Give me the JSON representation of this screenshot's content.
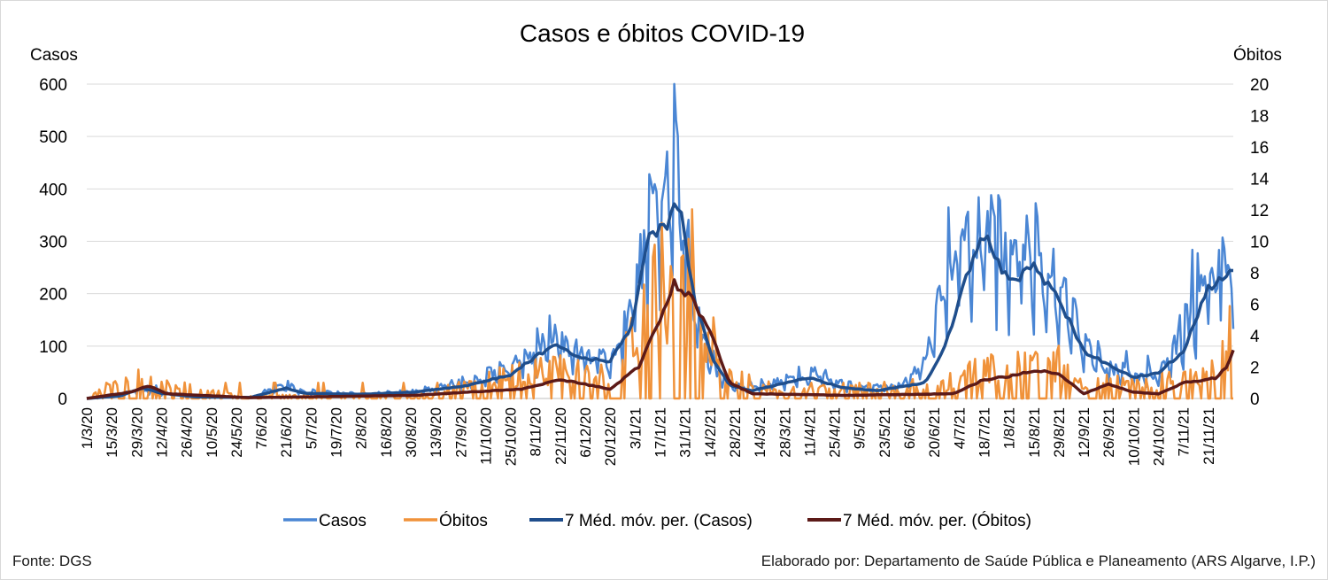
{
  "chart_data": {
    "type": "line",
    "title": "Casos e óbitos COVID-19",
    "ylabel_left": "Casos",
    "ylabel_right": "Óbitos",
    "ylim_left": [
      0,
      600
    ],
    "ylim_right": [
      0,
      20
    ],
    "yticks_left": [
      "0",
      "100",
      "200",
      "300",
      "400",
      "500",
      "600"
    ],
    "yticks_right": [
      "0",
      "2",
      "4",
      "6",
      "8",
      "10",
      "12",
      "14",
      "16",
      "18",
      "20"
    ],
    "grid": true,
    "legend_position": "bottom",
    "x_start": "1/3/20",
    "x_end": "5/12/21",
    "x_tick_labels": [
      "1/3/20",
      "15/3/20",
      "29/3/20",
      "12/4/20",
      "26/4/20",
      "10/5/20",
      "24/5/20",
      "7/6/20",
      "21/6/20",
      "5/7/20",
      "19/7/20",
      "2/8/20",
      "16/8/20",
      "30/8/20",
      "13/9/20",
      "27/9/20",
      "11/10/20",
      "25/10/20",
      "8/11/20",
      "22/11/20",
      "6/12/20",
      "20/12/20",
      "3/1/21",
      "17/1/21",
      "31/1/21",
      "14/2/21",
      "28/2/21",
      "14/3/21",
      "28/3/21",
      "11/4/21",
      "25/4/21",
      "9/5/21",
      "23/5/21",
      "6/6/21",
      "20/6/21",
      "4/7/21",
      "18/7/21",
      "1/8/21",
      "15/8/21",
      "29/8/21",
      "12/9/21",
      "26/9/21",
      "10/10/21",
      "24/10/21",
      "7/11/21",
      "21/11/21"
    ],
    "series": [
      {
        "name": "Casos",
        "axis": "left",
        "color": "#4a86d4",
        "approximate_daily_from_knots": [
          [
            "1/3/20",
            0
          ],
          [
            "20/3/20",
            5
          ],
          [
            "30/3/20",
            20
          ],
          [
            "10/4/20",
            12
          ],
          [
            "1/5/20",
            3
          ],
          [
            "1/6/20",
            2
          ],
          [
            "20/6/20",
            25
          ],
          [
            "1/7/20",
            12
          ],
          [
            "1/8/20",
            8
          ],
          [
            "1/9/20",
            12
          ],
          [
            "1/10/20",
            30
          ],
          [
            "25/10/20",
            55
          ],
          [
            "8/11/20",
            90
          ],
          [
            "20/11/20",
            115
          ],
          [
            "1/12/20",
            80
          ],
          [
            "20/12/20",
            70
          ],
          [
            "1/1/21",
            150
          ],
          [
            "10/1/21",
            320
          ],
          [
            "20/1/21",
            380
          ],
          [
            "27/1/21",
            420
          ],
          [
            "3/2/21",
            210
          ],
          [
            "10/2/21",
            100
          ],
          [
            "20/2/21",
            40
          ],
          [
            "1/3/21",
            20
          ],
          [
            "15/3/21",
            25
          ],
          [
            "1/4/21",
            38
          ],
          [
            "15/4/21",
            45
          ],
          [
            "1/5/21",
            25
          ],
          [
            "15/5/21",
            20
          ],
          [
            "1/6/21",
            25
          ],
          [
            "15/6/21",
            60
          ],
          [
            "25/6/21",
            220
          ],
          [
            "10/7/21",
            290
          ],
          [
            "18/7/21",
            320
          ],
          [
            "1/8/21",
            250
          ],
          [
            "15/8/21",
            280
          ],
          [
            "29/8/21",
            220
          ],
          [
            "12/9/21",
            100
          ],
          [
            "26/9/21",
            55
          ],
          [
            "10/10/21",
            40
          ],
          [
            "24/10/21",
            45
          ],
          [
            "7/11/21",
            120
          ],
          [
            "21/11/21",
            230
          ],
          [
            "5/12/21",
            260
          ]
        ]
      },
      {
        "name": "Óbitos",
        "axis": "right",
        "color": "#f0923a",
        "approximate_daily_from_knots": [
          [
            "1/3/20",
            0
          ],
          [
            "25/3/20",
            1
          ],
          [
            "15/4/20",
            0.6
          ],
          [
            "1/6/20",
            0.1
          ],
          [
            "1/9/20",
            0.2
          ],
          [
            "1/10/20",
            0.6
          ],
          [
            "1/11/20",
            1.2
          ],
          [
            "22/11/20",
            1.5
          ],
          [
            "20/12/20",
            1.0
          ],
          [
            "5/1/21",
            3
          ],
          [
            "15/1/21",
            5
          ],
          [
            "25/1/21",
            7
          ],
          [
            "5/2/21",
            6
          ],
          [
            "15/2/21",
            4
          ],
          [
            "25/2/21",
            1
          ],
          [
            "15/3/21",
            0.6
          ],
          [
            "1/5/21",
            0.4
          ],
          [
            "1/7/21",
            0.8
          ],
          [
            "18/7/21",
            1.4
          ],
          [
            "15/8/21",
            1.8
          ],
          [
            "29/8/21",
            1.6
          ],
          [
            "12/9/21",
            0.6
          ],
          [
            "26/9/21",
            0.8
          ],
          [
            "10/10/21",
            0.6
          ],
          [
            "7/11/21",
            1
          ],
          [
            "25/11/21",
            1.6
          ],
          [
            "5/12/21",
            4
          ]
        ]
      },
      {
        "name": "7 Méd. móv. per. (Casos)",
        "axis": "left",
        "color": "#1f4e8c",
        "points": [
          [
            "1/3/20",
            0
          ],
          [
            "20/3/20",
            5
          ],
          [
            "1/4/20",
            20
          ],
          [
            "12/4/20",
            10
          ],
          [
            "1/5/20",
            3
          ],
          [
            "1/6/20",
            2
          ],
          [
            "21/6/20",
            20
          ],
          [
            "1/7/20",
            10
          ],
          [
            "1/8/20",
            8
          ],
          [
            "1/9/20",
            12
          ],
          [
            "1/10/20",
            25
          ],
          [
            "25/10/20",
            45
          ],
          [
            "8/11/20",
            80
          ],
          [
            "20/11/20",
            105
          ],
          [
            "1/12/20",
            80
          ],
          [
            "20/12/20",
            70
          ],
          [
            "1/1/21",
            140
          ],
          [
            "10/1/21",
            300
          ],
          [
            "20/1/21",
            330
          ],
          [
            "28/1/21",
            380
          ],
          [
            "5/2/21",
            190
          ],
          [
            "15/2/21",
            80
          ],
          [
            "25/2/21",
            25
          ],
          [
            "10/3/21",
            15
          ],
          [
            "10/4/21",
            40
          ],
          [
            "1/5/21",
            20
          ],
          [
            "20/5/21",
            15
          ],
          [
            "15/6/21",
            30
          ],
          [
            "25/6/21",
            90
          ],
          [
            "10/7/21",
            250
          ],
          [
            "18/7/21",
            315
          ],
          [
            "1/8/21",
            220
          ],
          [
            "15/8/21",
            250
          ],
          [
            "29/8/21",
            190
          ],
          [
            "12/9/21",
            90
          ],
          [
            "26/9/21",
            65
          ],
          [
            "10/10/21",
            40
          ],
          [
            "24/10/21",
            50
          ],
          [
            "7/11/21",
            90
          ],
          [
            "21/11/21",
            210
          ],
          [
            "5/12/21",
            240
          ]
        ]
      },
      {
        "name": "7 Méd. móv. per. (Óbitos)",
        "axis": "right",
        "color": "#5c1a18",
        "points": [
          [
            "1/3/20",
            0
          ],
          [
            "25/3/20",
            0.4
          ],
          [
            "5/4/20",
            0.8
          ],
          [
            "15/4/20",
            0.3
          ],
          [
            "1/6/20",
            0.05
          ],
          [
            "1/9/20",
            0.2
          ],
          [
            "1/10/20",
            0.4
          ],
          [
            "1/11/20",
            0.6
          ],
          [
            "22/11/20",
            1.2
          ],
          [
            "20/12/20",
            0.6
          ],
          [
            "5/1/21",
            2
          ],
          [
            "15/1/21",
            4.5
          ],
          [
            "25/1/21",
            7.4
          ],
          [
            "5/2/21",
            6.2
          ],
          [
            "15/2/21",
            4
          ],
          [
            "25/2/21",
            1
          ],
          [
            "10/3/21",
            0.3
          ],
          [
            "1/5/21",
            0.2
          ],
          [
            "1/7/21",
            0.3
          ],
          [
            "18/7/21",
            1.2
          ],
          [
            "1/8/21",
            1.4
          ],
          [
            "15/8/21",
            1.8
          ],
          [
            "29/8/21",
            1.6
          ],
          [
            "12/9/21",
            0.3
          ],
          [
            "26/9/21",
            0.9
          ],
          [
            "10/10/21",
            0.4
          ],
          [
            "24/10/21",
            0.3
          ],
          [
            "7/11/21",
            1
          ],
          [
            "25/11/21",
            1.3
          ],
          [
            "1/12/21",
            2
          ],
          [
            "5/12/21",
            3
          ]
        ]
      }
    ]
  },
  "footer": {
    "source": "Fonte: DGS",
    "credit": "Elaborado por: Departamento de Saúde Pública e Planeamento (ARS Algarve, I.P.)"
  }
}
